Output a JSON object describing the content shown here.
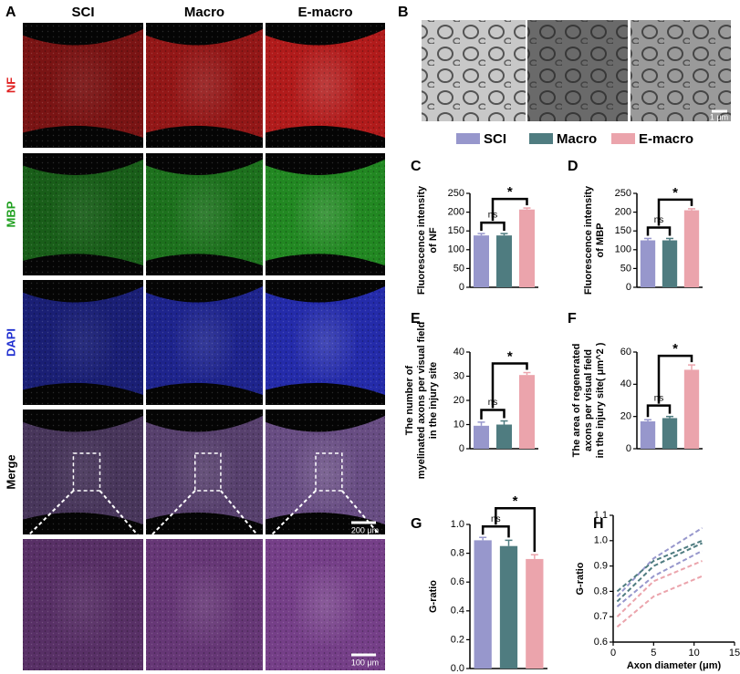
{
  "figure": {
    "A": {
      "label": "A",
      "columns": [
        "SCI",
        "Macro",
        "E-macro"
      ],
      "rows": [
        "NF",
        "MBP",
        "DAPI",
        "Merge"
      ],
      "scale_bars": [
        "200 μm",
        "100 μm"
      ]
    },
    "B": {
      "label": "B",
      "scale_bar": "1 μm"
    }
  },
  "legend": [
    {
      "name": "SCI",
      "color": "#9797cc"
    },
    {
      "name": "Macro",
      "color": "#4f7c80"
    },
    {
      "name": "E-macro",
      "color": "#eba4ac"
    }
  ],
  "chart_data": [
    {
      "type": "bar",
      "panel": "C",
      "ylabel": [
        "Fluorescence intensity",
        "of NF"
      ],
      "categories": [
        "SCI",
        "Macro",
        "E-macro"
      ],
      "colors": [
        "#9797cc",
        "#4f7c80",
        "#eba4ac"
      ],
      "values": [
        138,
        138,
        207
      ],
      "errors": [
        5,
        5,
        4
      ],
      "ylim": [
        0,
        250
      ],
      "yticks": [
        0,
        50,
        100,
        150,
        200,
        250
      ],
      "annotations": [
        "ns",
        "*"
      ]
    },
    {
      "type": "bar",
      "panel": "D",
      "ylabel": [
        "Fluorescence intensity",
        "of MBP"
      ],
      "categories": [
        "SCI",
        "Macro",
        "E-macro"
      ],
      "colors": [
        "#9797cc",
        "#4f7c80",
        "#eba4ac"
      ],
      "values": [
        125,
        125,
        205
      ],
      "errors": [
        5,
        5,
        4
      ],
      "ylim": [
        0,
        250
      ],
      "yticks": [
        0,
        50,
        100,
        150,
        200,
        250
      ],
      "annotations": [
        "ns",
        "*"
      ]
    },
    {
      "type": "bar",
      "panel": "E",
      "ylabel": [
        "The number of",
        "myelinated axons per visual field",
        "in the injury site"
      ],
      "categories": [
        "SCI",
        "Macro",
        "E-macro"
      ],
      "colors": [
        "#9797cc",
        "#4f7c80",
        "#eba4ac"
      ],
      "values": [
        9.5,
        10,
        30.5
      ],
      "errors": [
        1.5,
        1.5,
        1
      ],
      "ylim": [
        0,
        40
      ],
      "yticks": [
        0,
        10,
        20,
        30,
        40
      ],
      "annotations": [
        "ns",
        "*"
      ]
    },
    {
      "type": "bar",
      "panel": "F",
      "ylabel": [
        "The area of regenerated",
        "axons per visual field",
        "in the injury site( μm^2 )"
      ],
      "categories": [
        "SCI",
        "Macro",
        "E-macro"
      ],
      "colors": [
        "#9797cc",
        "#4f7c80",
        "#eba4ac"
      ],
      "values": [
        17,
        19,
        49
      ],
      "errors": [
        1,
        1,
        3
      ],
      "ylim": [
        0,
        60
      ],
      "yticks": [
        0,
        20,
        40,
        60
      ],
      "annotations": [
        "ns",
        "*"
      ]
    },
    {
      "type": "bar",
      "panel": "G",
      "ylabel": [
        "G-ratio"
      ],
      "categories": [
        "SCI",
        "Macro",
        "E-macro"
      ],
      "colors": [
        "#9797cc",
        "#4f7c80",
        "#eba4ac"
      ],
      "values": [
        0.89,
        0.85,
        0.76
      ],
      "errors": [
        0.02,
        0.04,
        0.03
      ],
      "ylim": [
        0,
        1.0
      ],
      "yticks": [
        {
          "value": 0,
          "label": "0.0"
        },
        0.2,
        0.4,
        0.6,
        0.8,
        {
          "value": 1.0,
          "label": "1.0"
        }
      ],
      "annotations": [
        "ns",
        "*"
      ]
    },
    {
      "type": "line",
      "panel": "H",
      "ylabel": [
        "G-ratio"
      ],
      "xlabel": "Axon diameter (μm)",
      "xlim": [
        0,
        15
      ],
      "xticks": [
        0,
        5,
        10,
        15
      ],
      "ylim": [
        0.6,
        1.1
      ],
      "yticks": [
        0.6,
        0.7,
        0.8,
        0.9,
        {
          "value": 1.0,
          "label": "1.0"
        },
        1.1
      ],
      "series": [
        {
          "color": "#9797cc",
          "x": [
            0.5,
            5,
            11
          ],
          "values": [
            0.78,
            0.93,
            1.05
          ]
        },
        {
          "color": "#9797cc",
          "x": [
            0.5,
            5,
            11
          ],
          "values": [
            0.74,
            0.86,
            0.96
          ]
        },
        {
          "color": "#4f7c80",
          "x": [
            0.5,
            5,
            11
          ],
          "values": [
            0.8,
            0.92,
            1.0
          ]
        },
        {
          "color": "#4f7c80",
          "x": [
            0.5,
            5,
            11
          ],
          "values": [
            0.76,
            0.9,
            0.99
          ]
        },
        {
          "color": "#eba4ac",
          "x": [
            0.5,
            5,
            11
          ],
          "values": [
            0.7,
            0.84,
            0.92
          ]
        },
        {
          "color": "#eba4ac",
          "x": [
            0.5,
            5,
            11
          ],
          "values": [
            0.66,
            0.78,
            0.86
          ]
        }
      ]
    }
  ]
}
